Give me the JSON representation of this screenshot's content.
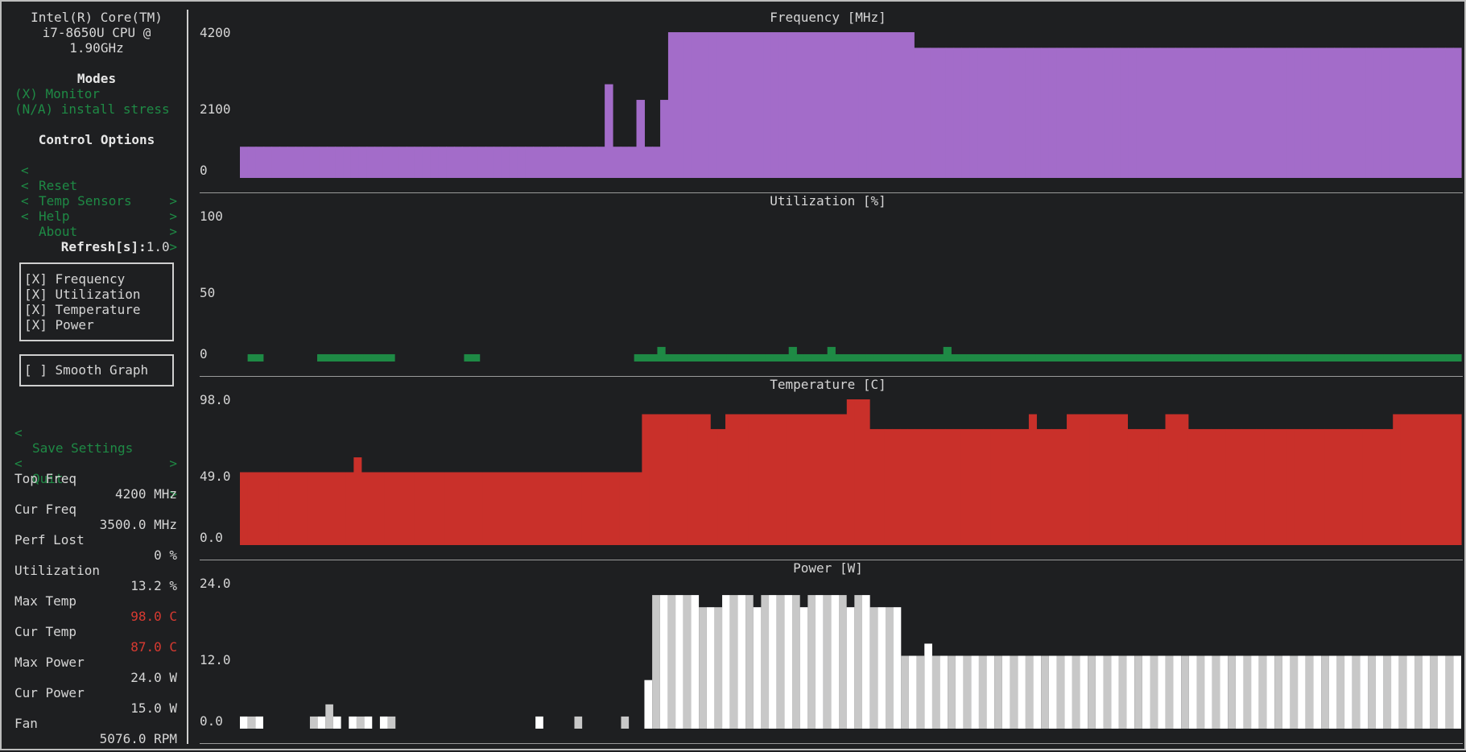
{
  "sidebar": {
    "cpu_name_lines": [
      "Intel(R) Core(TM)",
      "i7-8650U CPU @",
      "1.90GHz"
    ],
    "modes_title": "Modes",
    "modes": [
      {
        "label": "(X) Monitor"
      },
      {
        "label": "(N/A) install stress"
      }
    ],
    "control_title": "Control Options",
    "controls": [
      {
        "lt": "<",
        "label": "Reset",
        "gt": ">"
      },
      {
        "lt": "<",
        "label": "Temp Sensors",
        "gt": ">"
      },
      {
        "lt": "<",
        "label": "Help",
        "gt": ">"
      },
      {
        "lt": "<",
        "label": "About",
        "gt": ">"
      }
    ],
    "refresh_label": "Refresh[s]:",
    "refresh_value": "1.0",
    "graph_toggles": [
      {
        "label": "[X] Frequency"
      },
      {
        "label": "[X] Utilization"
      },
      {
        "label": "[X] Temperature"
      },
      {
        "label": "[X] Power"
      }
    ],
    "smooth_graph": "[ ] Smooth Graph",
    "save_settings": {
      "lt": "<",
      "label": "Save Settings",
      "gt": ">"
    },
    "quit": {
      "lt": "<",
      "label": "Quit",
      "gt": ">"
    },
    "stats": [
      {
        "label": "Top Freq",
        "value": "4200 MHz",
        "color": "#d6d6d6"
      },
      {
        "label": "Cur Freq",
        "value": "3500.0 MHz",
        "color": "#d6d6d6"
      },
      {
        "label": "Perf Lost",
        "value": "0 %",
        "color": "#d6d6d6"
      },
      {
        "label": "Utilization",
        "value": "13.2 %",
        "color": "#d6d6d6"
      },
      {
        "label": "Max Temp",
        "value": "98.0 C",
        "color": "#d83a31"
      },
      {
        "label": "Cur Temp",
        "value": "87.0 C",
        "color": "#d83a31"
      },
      {
        "label": "Max Power",
        "value": "24.0 W",
        "color": "#d6d6d6"
      },
      {
        "label": "Cur Power",
        "value": "15.0 W",
        "color": "#d6d6d6"
      },
      {
        "label": "Fan",
        "value": "5076.0 RPM",
        "color": "#d6d6d6"
      }
    ]
  },
  "chart_data": [
    {
      "type": "bar",
      "title": "Frequency [MHz]",
      "yticks": [
        "4200",
        "2100",
        "0"
      ],
      "ylim": [
        0,
        4200
      ],
      "color": "#a36cc9",
      "values": [
        900,
        900,
        900,
        900,
        900,
        900,
        900,
        900,
        900,
        900,
        900,
        900,
        900,
        900,
        900,
        900,
        900,
        900,
        900,
        900,
        900,
        900,
        900,
        900,
        900,
        900,
        900,
        900,
        900,
        900,
        900,
        900,
        900,
        900,
        900,
        900,
        900,
        900,
        900,
        900,
        900,
        900,
        900,
        900,
        900,
        900,
        2700,
        900,
        900,
        900,
        2250,
        900,
        900,
        2250,
        4200,
        4200,
        4200,
        4200,
        4200,
        4200,
        4200,
        4200,
        4200,
        4200,
        4200,
        4200,
        4200,
        4200,
        4200,
        4200,
        4200,
        4200,
        4200,
        4200,
        4200,
        4200,
        4200,
        4200,
        4200,
        4200,
        4200,
        4200,
        4200,
        4200,
        4200,
        3750,
        3750,
        3750,
        3750,
        3750,
        3750,
        3750,
        3750,
        3750,
        3750,
        3750,
        3750,
        3750,
        3750,
        3750,
        3750,
        3750,
        3750,
        3750,
        3750,
        3750,
        3750,
        3750,
        3750,
        3750,
        3750,
        3750,
        3750,
        3750,
        3750,
        3750,
        3750,
        3750,
        3750,
        3750,
        3750,
        3750,
        3750,
        3750,
        3750,
        3750,
        3750,
        3750,
        3750,
        3750,
        3750,
        3750,
        3750,
        3750,
        3750,
        3750,
        3750,
        3750,
        3750,
        3750,
        3750,
        3750,
        3750,
        3750,
        3750,
        3750,
        3750,
        3750,
        3750,
        3750,
        3750,
        3750,
        3750,
        3750
      ]
    },
    {
      "type": "bar",
      "title": "Utilization [%]",
      "yticks": [
        "100",
        "50",
        "0"
      ],
      "ylim": [
        0,
        100
      ],
      "color": "#1e8a45",
      "values": [
        0,
        5,
        5,
        0,
        0,
        0,
        0,
        0,
        0,
        0,
        5,
        5,
        5,
        5,
        5,
        5,
        5,
        5,
        5,
        5,
        0,
        0,
        0,
        0,
        0,
        0,
        0,
        0,
        0,
        5,
        5,
        0,
        0,
        0,
        0,
        0,
        0,
        0,
        0,
        0,
        0,
        0,
        0,
        0,
        0,
        0,
        0,
        0,
        0,
        0,
        0,
        5,
        5,
        5,
        10,
        5,
        5,
        5,
        5,
        5,
        5,
        5,
        5,
        5,
        5,
        5,
        5,
        5,
        5,
        5,
        5,
        10,
        5,
        5,
        5,
        5,
        10,
        5,
        5,
        5,
        5,
        5,
        5,
        5,
        5,
        5,
        5,
        5,
        5,
        5,
        5,
        10,
        5,
        5,
        5,
        5,
        5,
        5,
        5,
        5,
        5,
        5,
        5,
        5,
        5,
        5,
        5,
        5,
        5,
        5,
        5,
        5,
        5,
        5,
        5,
        5,
        5,
        5,
        5,
        5,
        5,
        5,
        5,
        5,
        5,
        5,
        5,
        5,
        5,
        5,
        5,
        5,
        5,
        5,
        5,
        5,
        5,
        5,
        5,
        5,
        5,
        5,
        5,
        5,
        5,
        5,
        5,
        5,
        5,
        5,
        5,
        5,
        5,
        5,
        5,
        5,
        5,
        5
      ]
    },
    {
      "type": "bar",
      "title": "Temperature [C]",
      "yticks": [
        "98.0",
        "49.0",
        "0.0"
      ],
      "ylim": [
        0,
        98
      ],
      "color": "#c9302a",
      "values": [
        49,
        49,
        49,
        49,
        49,
        49,
        49,
        49,
        49,
        49,
        49,
        49,
        49,
        49,
        49,
        59,
        49,
        49,
        49,
        49,
        49,
        49,
        49,
        49,
        49,
        49,
        49,
        49,
        49,
        49,
        49,
        49,
        49,
        49,
        49,
        49,
        49,
        49,
        49,
        49,
        49,
        49,
        49,
        49,
        49,
        49,
        49,
        49,
        49,
        49,
        49,
        49,
        49,
        88,
        88,
        88,
        88,
        88,
        88,
        88,
        88,
        88,
        78,
        78,
        88,
        88,
        88,
        88,
        88,
        88,
        88,
        88,
        88,
        88,
        88,
        88,
        88,
        88,
        88,
        88,
        98,
        98,
        98,
        78,
        78,
        78,
        78,
        78,
        78,
        78,
        78,
        78,
        78,
        78,
        78,
        78,
        78,
        78,
        78,
        78,
        78,
        78,
        78,
        78,
        88,
        78,
        78,
        78,
        78,
        88,
        88,
        88,
        88,
        88,
        88,
        88,
        88,
        78,
        78,
        78,
        78,
        78,
        88,
        88,
        88,
        78,
        78,
        78,
        78,
        78,
        78,
        78,
        78,
        78,
        78,
        78,
        78,
        78,
        78,
        78,
        78,
        78,
        78,
        78,
        78,
        78,
        78,
        78,
        78,
        78,
        78,
        78,
        88,
        88,
        88,
        88,
        88,
        88,
        88,
        88,
        88
      ]
    },
    {
      "type": "bar",
      "title": "Power [W]",
      "yticks": [
        "24.0",
        "12.0",
        "0.0"
      ],
      "ylim": [
        0,
        24
      ],
      "color": "#c8c8c8",
      "values": [
        2,
        2,
        2,
        0,
        0,
        0,
        0,
        0,
        0,
        2,
        2,
        4,
        2,
        0,
        2,
        2,
        2,
        0,
        2,
        2,
        0,
        0,
        0,
        0,
        0,
        0,
        0,
        0,
        0,
        0,
        0,
        0,
        0,
        0,
        0,
        0,
        0,
        0,
        2,
        0,
        0,
        0,
        0,
        2,
        0,
        0,
        0,
        0,
        0,
        2,
        0,
        0,
        8,
        22,
        22,
        22,
        22,
        22,
        22,
        20,
        20,
        20,
        22,
        22,
        22,
        22,
        20,
        22,
        22,
        22,
        22,
        22,
        20,
        22,
        22,
        22,
        22,
        22,
        20,
        22,
        22,
        20,
        20,
        20,
        20,
        12,
        12,
        12,
        14,
        12,
        12,
        12,
        12,
        12,
        12,
        12,
        12,
        12,
        12,
        12,
        12,
        12,
        12,
        12,
        12,
        12,
        12,
        12,
        12,
        12,
        12,
        12,
        12,
        12,
        12,
        12,
        12,
        12,
        12,
        12,
        12,
        12,
        12,
        12,
        12,
        12,
        12,
        12,
        12,
        12,
        12,
        12,
        12,
        12,
        12,
        12,
        12,
        12,
        12,
        12,
        12,
        12,
        12,
        12,
        12,
        12,
        12,
        12,
        12,
        12,
        12,
        12,
        12,
        12,
        12,
        12,
        12
      ]
    }
  ]
}
